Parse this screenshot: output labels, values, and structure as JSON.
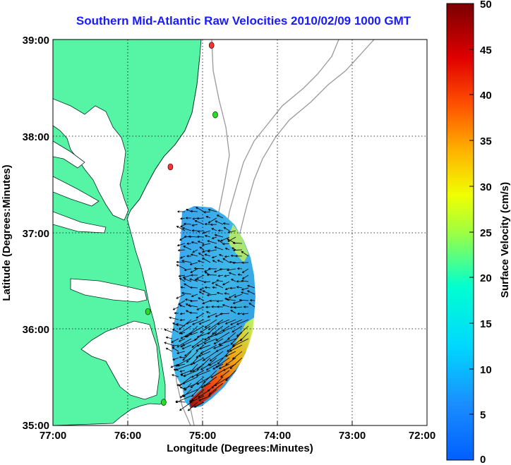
{
  "title": "Southern Mid-Atlantic Raw Velocities 2010/02/09 1000 GMT",
  "xaxis": {
    "label": "Longitude (Degrees:Minutes)",
    "ticks": [
      "77:00",
      "76:00",
      "75:00",
      "74:00",
      "73:00",
      "72:00"
    ]
  },
  "yaxis": {
    "label": "Latitude (Degrees:Minutes)",
    "ticks": [
      "39:00",
      "38:00",
      "37:00",
      "36:00",
      "35:00"
    ]
  },
  "colorbar": {
    "label": "Surface Velocity (cm/s)",
    "ticks": [
      "50",
      "45",
      "40",
      "35",
      "30",
      "25",
      "20",
      "15",
      "10",
      "5",
      "0"
    ],
    "range": [
      0,
      50
    ],
    "colormap": "jet"
  },
  "chart_data": {
    "type": "heatmap",
    "title": "Southern Mid-Atlantic Raw Velocities 2010/02/09 1000 GMT",
    "xlabel": "Longitude (Degrees:Minutes)",
    "ylabel": "Latitude (Degrees:Minutes)",
    "xlim_deg_west": [
      77,
      72
    ],
    "ylim_deg_north": [
      35,
      39
    ],
    "grid": true,
    "colorbar_label": "Surface Velocity (cm/s)",
    "colorbar_range": [
      0,
      50
    ],
    "land_color": "#55f5a5",
    "title_color": "#1a1aff",
    "station_markers": [
      {
        "lon": -74.88,
        "lat": 38.94,
        "color": "#ff3030"
      },
      {
        "lon": -74.83,
        "lat": 38.22,
        "color": "#20e020"
      },
      {
        "lon": -75.43,
        "lat": 37.68,
        "color": "#ff3030"
      },
      {
        "lon": -75.73,
        "lat": 36.18,
        "color": "#20e020"
      },
      {
        "lon": -75.52,
        "lat": 35.24,
        "color": "#20e020"
      }
    ]
  }
}
